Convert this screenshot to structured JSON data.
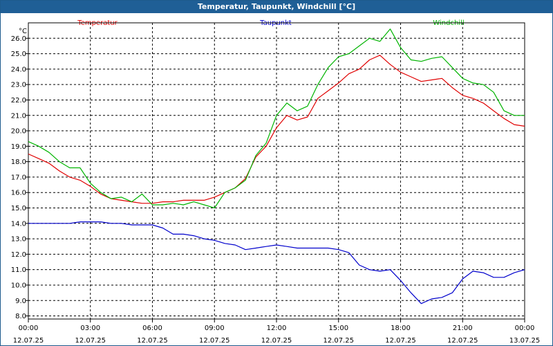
{
  "window": {
    "title": "Temperatur, Taupunkt, Windchill [°C]"
  },
  "chart_data": {
    "type": "line",
    "title": "Temperatur, Taupunkt, Windchill [°C]",
    "ylabel": "°C",
    "ylim": [
      7.8,
      27.0
    ],
    "xlim": [
      0,
      24
    ],
    "grid": true,
    "legend": "top",
    "colors": {
      "Temperatur": "#e00000",
      "Taupunkt": "#0000cc",
      "Windchill": "#00b400"
    },
    "yticks": [
      "8.0",
      "9.0",
      "10.0",
      "11.0",
      "12.0",
      "13.0",
      "14.0",
      "15.0",
      "16.0",
      "17.0",
      "18.0",
      "19.0",
      "20.0",
      "21.0",
      "22.0",
      "23.0",
      "24.0",
      "25.0",
      "26.0"
    ],
    "xticks": [
      {
        "time": "00:00",
        "date": "12.07.25"
      },
      {
        "time": "03:00",
        "date": "12.07.25"
      },
      {
        "time": "06:00",
        "date": "12.07.25"
      },
      {
        "time": "09:00",
        "date": "12.07.25"
      },
      {
        "time": "12:00",
        "date": "12.07.25"
      },
      {
        "time": "15:00",
        "date": "12.07.25"
      },
      {
        "time": "18:00",
        "date": "12.07.25"
      },
      {
        "time": "21:00",
        "date": "12.07.25"
      },
      {
        "time": "00:00",
        "date": "13.07.25"
      }
    ],
    "series": [
      {
        "name": "Temperatur",
        "x": [
          0,
          0.5,
          1,
          1.5,
          2,
          2.5,
          3,
          3.5,
          4,
          4.5,
          5,
          5.5,
          6,
          6.5,
          7,
          7.5,
          8,
          8.5,
          9,
          9.5,
          10,
          10.5,
          11,
          11.5,
          12,
          12.5,
          13,
          13.5,
          14,
          14.5,
          15,
          15.5,
          16,
          16.5,
          17,
          17.5,
          18,
          18.5,
          19,
          19.5,
          20,
          20.5,
          21,
          21.5,
          22,
          22.5,
          23,
          23.5,
          24
        ],
        "values": [
          18.5,
          18.2,
          17.9,
          17.4,
          17.0,
          16.8,
          16.4,
          15.9,
          15.6,
          15.5,
          15.4,
          15.3,
          15.3,
          15.4,
          15.4,
          15.5,
          15.5,
          15.5,
          15.7,
          16.0,
          16.3,
          16.9,
          18.3,
          19.0,
          20.2,
          21.0,
          20.7,
          20.9,
          22.1,
          22.6,
          23.1,
          23.7,
          24.0,
          24.6,
          24.9,
          24.3,
          23.8,
          23.5,
          23.2,
          23.3,
          23.4,
          22.8,
          22.3,
          22.1,
          21.8,
          21.3,
          20.8,
          20.4,
          20.3
        ]
      },
      {
        "name": "Taupunkt",
        "x": [
          0,
          0.5,
          1,
          1.5,
          2,
          2.5,
          3,
          3.5,
          4,
          4.5,
          5,
          5.5,
          6,
          6.5,
          7,
          7.5,
          8,
          8.5,
          9,
          9.5,
          10,
          10.5,
          11,
          11.5,
          12,
          12.5,
          13,
          13.5,
          14,
          14.5,
          15,
          15.5,
          16,
          16.5,
          17,
          17.5,
          18,
          18.5,
          19,
          19.5,
          20,
          20.5,
          21,
          21.5,
          22,
          22.5,
          23,
          23.5,
          24
        ],
        "values": [
          14.0,
          14.0,
          14.0,
          14.0,
          14.0,
          14.1,
          14.1,
          14.1,
          14.0,
          14.0,
          13.9,
          13.9,
          13.9,
          13.7,
          13.3,
          13.3,
          13.2,
          13.0,
          12.9,
          12.7,
          12.6,
          12.3,
          12.4,
          12.5,
          12.6,
          12.5,
          12.4,
          12.4,
          12.4,
          12.4,
          12.3,
          12.1,
          11.3,
          11.0,
          10.9,
          11.0,
          10.3,
          9.5,
          8.8,
          9.1,
          9.2,
          9.5,
          10.4,
          10.9,
          10.8,
          10.5,
          10.5,
          10.8,
          11.0
        ]
      },
      {
        "name": "Windchill",
        "x": [
          0,
          0.5,
          1,
          1.5,
          2,
          2.5,
          3,
          3.5,
          4,
          4.5,
          5,
          5.5,
          6,
          6.5,
          7,
          7.5,
          8,
          8.5,
          9,
          9.5,
          10,
          10.5,
          11,
          11.5,
          12,
          12.5,
          13,
          13.5,
          14,
          14.5,
          15,
          15.5,
          16,
          16.5,
          17,
          17.5,
          18,
          18.5,
          19,
          19.5,
          20,
          20.5,
          21,
          21.5,
          22,
          22.5,
          23,
          23.5,
          24
        ],
        "values": [
          19.3,
          19.0,
          18.6,
          18.0,
          17.6,
          17.6,
          16.6,
          16.0,
          15.6,
          15.7,
          15.4,
          15.9,
          15.2,
          15.2,
          15.3,
          15.2,
          15.4,
          15.2,
          15.0,
          16.0,
          16.3,
          16.8,
          18.4,
          19.2,
          21.0,
          21.8,
          21.3,
          21.6,
          23.0,
          24.1,
          24.8,
          25.0,
          25.5,
          26.0,
          25.8,
          26.6,
          25.4,
          24.6,
          24.5,
          24.7,
          24.8,
          24.1,
          23.4,
          23.1,
          23.0,
          22.5,
          21.3,
          21.0,
          21.0
        ]
      }
    ]
  }
}
